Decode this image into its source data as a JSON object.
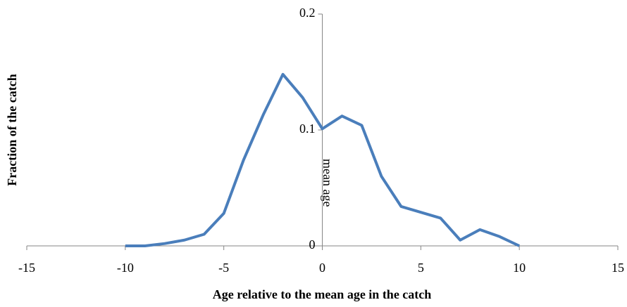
{
  "chart_data": {
    "type": "line",
    "x_label": "Age relative to the mean age in the catch",
    "y_label": "Fraction of the catch",
    "annotation": "mean age",
    "x": [
      -10,
      -9,
      -8,
      -7,
      -6,
      -5,
      -4,
      -3,
      -2,
      -1,
      0,
      1,
      2,
      3,
      4,
      5,
      6,
      7,
      8,
      9,
      10
    ],
    "series": [
      {
        "name": "Fraction of the catch",
        "color": "#4a7ebb",
        "values": [
          0,
          0,
          0.002,
          0.005,
          0.01,
          0.028,
          0.074,
          0.113,
          0.148,
          0.128,
          0.101,
          0.112,
          0.104,
          0.06,
          0.034,
          0.029,
          0.024,
          0.005,
          0.014,
          0.008,
          0
        ]
      }
    ],
    "xlim": [
      -15,
      15
    ],
    "xticks": [
      -15,
      -10,
      -5,
      0,
      5,
      10,
      15
    ],
    "ylim": [
      0,
      0.2
    ],
    "yticks": [
      0,
      0.1,
      0.2
    ]
  }
}
